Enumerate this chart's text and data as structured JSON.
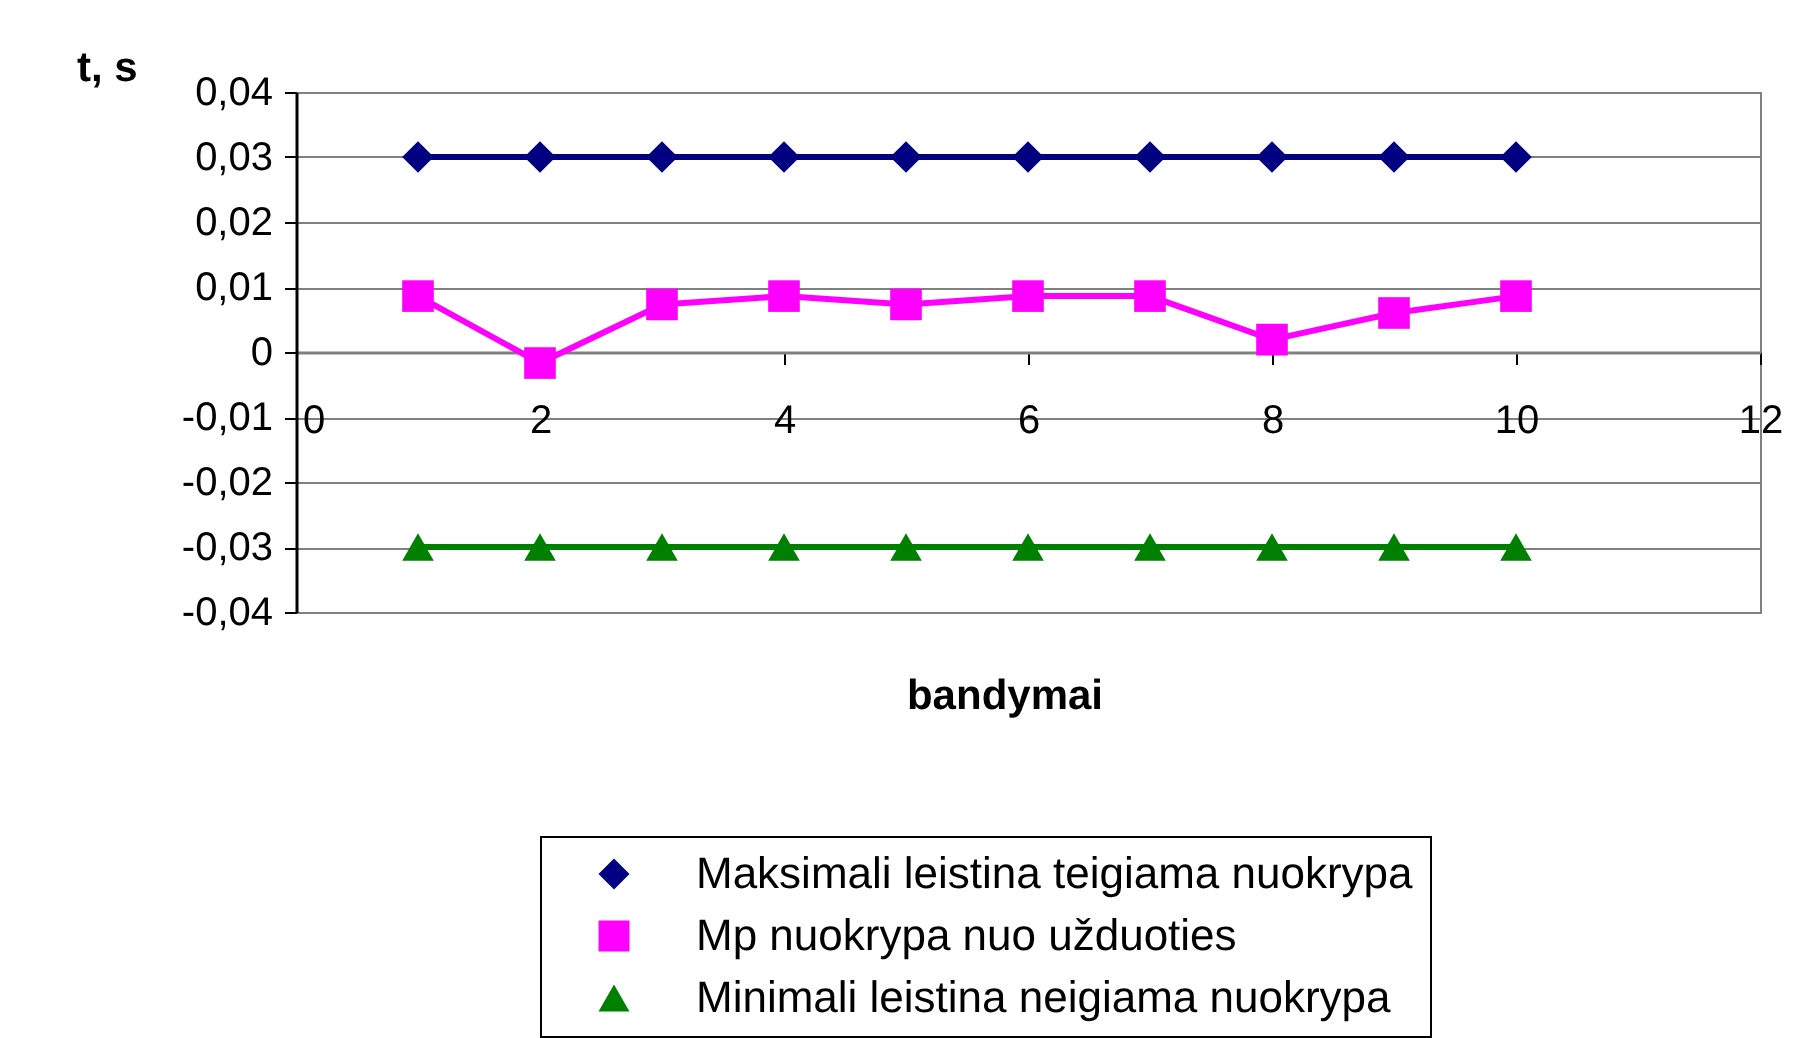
{
  "chart_data": {
    "type": "line",
    "xlabel": "bandymai",
    "ylabel": "t, s",
    "x": [
      1,
      2,
      3,
      4,
      5,
      6,
      7,
      8,
      9,
      10
    ],
    "series": [
      {
        "name": "Maksimali leistina teigiama nuokrypa",
        "color": "#000080",
        "marker": "diamond",
        "values": [
          0.03,
          0.03,
          0.03,
          0.03,
          0.03,
          0.03,
          0.03,
          0.03,
          0.03,
          0.03
        ]
      },
      {
        "name": "Mp nuokrypa nuo užduoties",
        "color": "#ff00ff",
        "marker": "square",
        "values": [
          0.0086,
          -0.0017,
          0.0073,
          0.0086,
          0.0073,
          0.0086,
          0.0086,
          0.0019,
          0.006,
          0.0086
        ]
      },
      {
        "name": "Minimali leistina neigiama nuokrypa",
        "color": "#008000",
        "marker": "triangle",
        "values": [
          -0.03,
          -0.03,
          -0.03,
          -0.03,
          -0.03,
          -0.03,
          -0.03,
          -0.03,
          -0.03,
          -0.03
        ]
      }
    ],
    "xlim": [
      0,
      12
    ],
    "xticks": [
      0,
      2,
      4,
      6,
      8,
      10,
      12
    ],
    "ylim": [
      -0.04,
      0.04
    ],
    "yticks": [
      {
        "value": 0.04,
        "label": "0,04"
      },
      {
        "value": 0.03,
        "label": "0,03"
      },
      {
        "value": 0.02,
        "label": "0,02"
      },
      {
        "value": 0.01,
        "label": "0,01"
      },
      0,
      {
        "value": -0.01,
        "label": "-0,01"
      },
      {
        "value": -0.02,
        "label": "-0,02"
      },
      {
        "value": -0.03,
        "label": "-0,03"
      },
      {
        "value": -0.04,
        "label": "-0,04"
      }
    ],
    "grid": "y",
    "legend": "bottom",
    "line_style": "solid"
  }
}
